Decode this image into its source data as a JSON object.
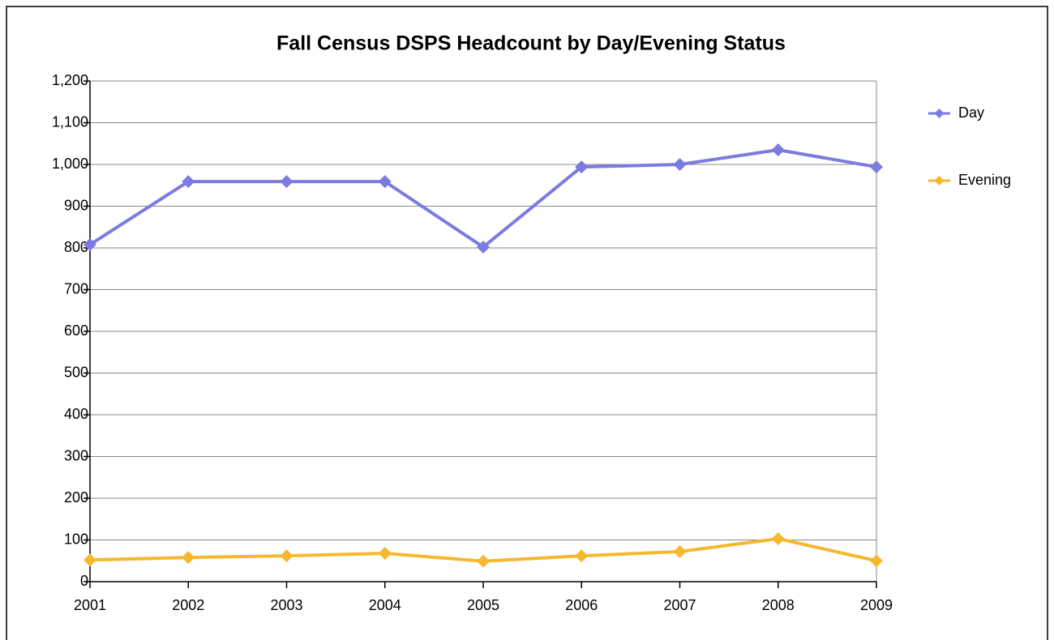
{
  "chart_data": {
    "type": "line",
    "title": "Fall Census DSPS Headcount by Day/Evening Status",
    "categories": [
      "2001",
      "2002",
      "2003",
      "2004",
      "2005",
      "2006",
      "2007",
      "2008",
      "2009"
    ],
    "series": [
      {
        "name": "Day",
        "color": "#7b7be0",
        "values": [
          808,
          959,
          959,
          959,
          802,
          994,
          1000,
          1035,
          994
        ]
      },
      {
        "name": "Evening",
        "color": "#f5b82e",
        "values": [
          52,
          58,
          62,
          68,
          49,
          62,
          72,
          103,
          50
        ]
      }
    ],
    "ylim": [
      0,
      1200
    ],
    "yticks": [
      0,
      100,
      200,
      300,
      400,
      500,
      600,
      700,
      800,
      900,
      {
        "value": 1000,
        "label": "1,000"
      },
      {
        "value": 1100,
        "label": "1,100"
      },
      {
        "value": 1200,
        "label": "1,200"
      }
    ],
    "grid": true,
    "legend": "right"
  }
}
